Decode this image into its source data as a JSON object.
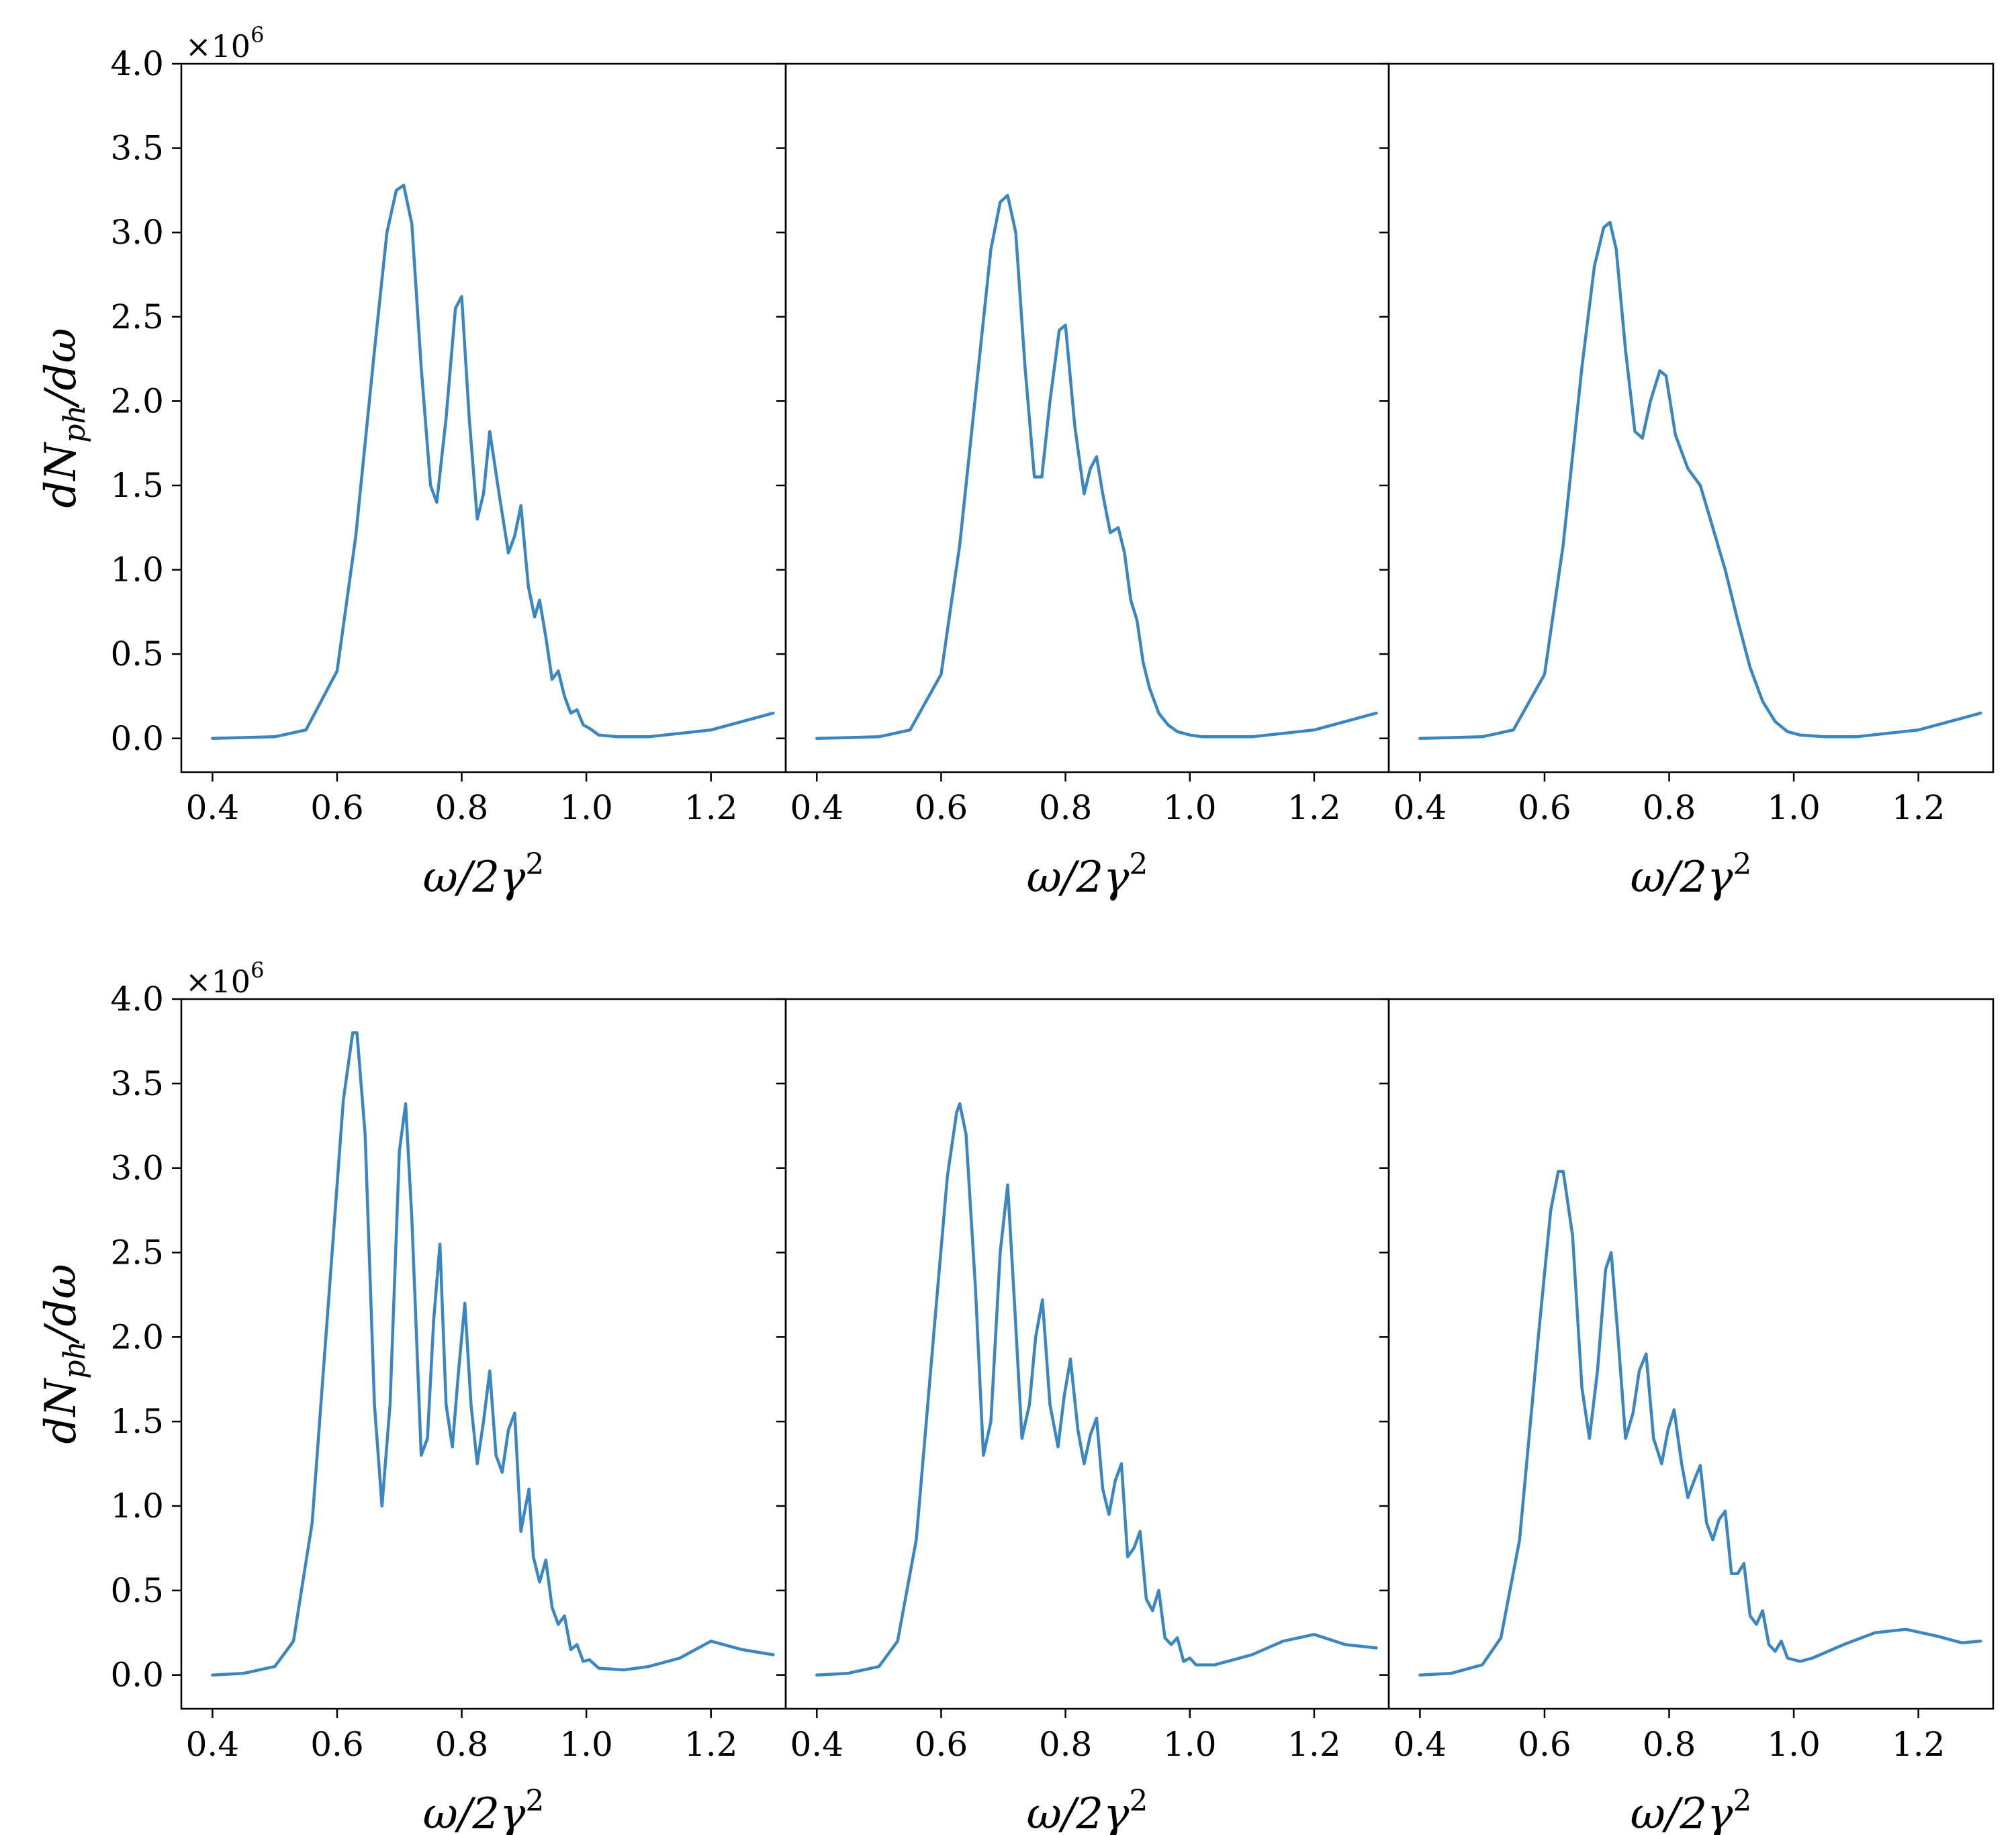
{
  "style": {
    "line_color": "#3a86c0"
  },
  "labels": {
    "xlabel_lhs": "ω/2γ",
    "xlabel_sup": "2",
    "ylabel_main": "dN",
    "ylabel_sub": "ph",
    "ylabel_tail": "/dω",
    "offset_base": "×10",
    "offset_exp": "6"
  },
  "chart_data": [
    {
      "type": "line",
      "row": 1,
      "col": 1,
      "xlim": [
        0.35,
        1.32
      ],
      "ylim": [
        -0.2,
        4.0
      ],
      "y_scale_factor": 1000000,
      "xticks": [
        "0.4",
        "0.6",
        "0.8",
        "1.0",
        "1.2"
      ],
      "yticks": [
        "0.0",
        "0.5",
        "1.0",
        "1.5",
        "2.0",
        "2.5",
        "3.0",
        "3.5",
        "4.0"
      ],
      "xlabel": "ω/2γ²",
      "ylabel": "dN_ph/dω",
      "offset_text": "×10^6",
      "x": [
        0.4,
        0.5,
        0.55,
        0.6,
        0.63,
        0.66,
        0.68,
        0.695,
        0.707,
        0.72,
        0.735,
        0.75,
        0.76,
        0.775,
        0.79,
        0.8,
        0.812,
        0.825,
        0.835,
        0.845,
        0.86,
        0.875,
        0.885,
        0.895,
        0.907,
        0.917,
        0.925,
        0.935,
        0.945,
        0.955,
        0.965,
        0.975,
        0.985,
        0.995,
        1.005,
        1.02,
        1.05,
        1.1,
        1.2,
        1.3
      ],
      "y": [
        0.0,
        0.01,
        0.05,
        0.4,
        1.2,
        2.3,
        3.0,
        3.25,
        3.28,
        3.05,
        2.2,
        1.5,
        1.4,
        1.9,
        2.55,
        2.62,
        1.9,
        1.3,
        1.45,
        1.82,
        1.45,
        1.1,
        1.2,
        1.38,
        0.9,
        0.72,
        0.82,
        0.6,
        0.35,
        0.4,
        0.25,
        0.15,
        0.17,
        0.08,
        0.06,
        0.02,
        0.01,
        0.01,
        0.05,
        0.15
      ]
    },
    {
      "type": "line",
      "row": 1,
      "col": 2,
      "xlim": [
        0.35,
        1.32
      ],
      "ylim": [
        -0.2,
        4.0
      ],
      "y_scale_factor": 1000000,
      "xticks": [
        "0.4",
        "0.6",
        "0.8",
        "1.0",
        "1.2"
      ],
      "xlabel": "ω/2γ²",
      "x": [
        0.4,
        0.5,
        0.55,
        0.6,
        0.63,
        0.66,
        0.68,
        0.695,
        0.707,
        0.72,
        0.735,
        0.75,
        0.762,
        0.775,
        0.79,
        0.8,
        0.815,
        0.83,
        0.84,
        0.85,
        0.86,
        0.872,
        0.885,
        0.895,
        0.905,
        0.915,
        0.925,
        0.935,
        0.95,
        0.965,
        0.98,
        1.0,
        1.02,
        1.06,
        1.1,
        1.2,
        1.3
      ],
      "y": [
        0.0,
        0.01,
        0.05,
        0.38,
        1.15,
        2.2,
        2.9,
        3.18,
        3.22,
        3.0,
        2.2,
        1.55,
        1.55,
        2.0,
        2.42,
        2.45,
        1.85,
        1.45,
        1.6,
        1.67,
        1.45,
        1.22,
        1.25,
        1.1,
        0.82,
        0.7,
        0.45,
        0.3,
        0.15,
        0.08,
        0.04,
        0.02,
        0.01,
        0.01,
        0.01,
        0.05,
        0.15
      ]
    },
    {
      "type": "line",
      "row": 1,
      "col": 3,
      "xlim": [
        0.35,
        1.32
      ],
      "ylim": [
        -0.2,
        4.0
      ],
      "y_scale_factor": 1000000,
      "xticks": [
        "0.4",
        "0.6",
        "0.8",
        "1.0",
        "1.2"
      ],
      "xlabel": "ω/2γ²",
      "x": [
        0.4,
        0.5,
        0.55,
        0.6,
        0.63,
        0.66,
        0.68,
        0.695,
        0.705,
        0.715,
        0.73,
        0.745,
        0.757,
        0.77,
        0.785,
        0.795,
        0.81,
        0.83,
        0.85,
        0.87,
        0.89,
        0.91,
        0.93,
        0.95,
        0.97,
        0.99,
        1.01,
        1.05,
        1.1,
        1.2,
        1.3
      ],
      "y": [
        0.0,
        0.01,
        0.05,
        0.38,
        1.15,
        2.2,
        2.8,
        3.03,
        3.06,
        2.9,
        2.3,
        1.82,
        1.78,
        2.0,
        2.18,
        2.15,
        1.8,
        1.6,
        1.5,
        1.25,
        1.0,
        0.7,
        0.42,
        0.22,
        0.1,
        0.04,
        0.02,
        0.01,
        0.01,
        0.05,
        0.15
      ]
    },
    {
      "type": "line",
      "row": 2,
      "col": 1,
      "xlim": [
        0.35,
        1.32
      ],
      "ylim": [
        -0.2,
        4.0
      ],
      "y_scale_factor": 1000000,
      "xticks": [
        "0.4",
        "0.6",
        "0.8",
        "1.0",
        "1.2"
      ],
      "yticks": [
        "0.0",
        "0.5",
        "1.0",
        "1.5",
        "2.0",
        "2.5",
        "3.0",
        "3.5",
        "4.0"
      ],
      "xlabel": "ω/2γ²",
      "ylabel": "dN_ph/dω",
      "offset_text": "×10^6",
      "x": [
        0.4,
        0.45,
        0.5,
        0.53,
        0.56,
        0.59,
        0.61,
        0.625,
        0.632,
        0.645,
        0.66,
        0.672,
        0.685,
        0.7,
        0.71,
        0.72,
        0.735,
        0.745,
        0.755,
        0.765,
        0.775,
        0.785,
        0.795,
        0.805,
        0.815,
        0.825,
        0.835,
        0.845,
        0.855,
        0.865,
        0.875,
        0.885,
        0.895,
        0.9,
        0.908,
        0.915,
        0.925,
        0.935,
        0.945,
        0.955,
        0.965,
        0.975,
        0.985,
        0.995,
        1.005,
        1.02,
        1.06,
        1.1,
        1.15,
        1.2,
        1.25,
        1.3
      ],
      "y": [
        0.0,
        0.01,
        0.05,
        0.2,
        0.9,
        2.4,
        3.4,
        3.8,
        3.8,
        3.2,
        1.6,
        1.0,
        1.6,
        3.1,
        3.38,
        2.7,
        1.3,
        1.4,
        2.1,
        2.55,
        1.6,
        1.35,
        1.8,
        2.2,
        1.6,
        1.25,
        1.5,
        1.8,
        1.3,
        1.2,
        1.45,
        1.55,
        0.85,
        0.95,
        1.1,
        0.7,
        0.55,
        0.68,
        0.4,
        0.3,
        0.35,
        0.15,
        0.18,
        0.08,
        0.09,
        0.04,
        0.03,
        0.05,
        0.1,
        0.2,
        0.15,
        0.12
      ]
    },
    {
      "type": "line",
      "row": 2,
      "col": 2,
      "xlim": [
        0.35,
        1.32
      ],
      "ylim": [
        -0.2,
        4.0
      ],
      "y_scale_factor": 1000000,
      "xticks": [
        "0.4",
        "0.6",
        "0.8",
        "1.0",
        "1.2"
      ],
      "xlabel": "ω/2γ²",
      "x": [
        0.4,
        0.45,
        0.5,
        0.53,
        0.56,
        0.59,
        0.61,
        0.625,
        0.63,
        0.64,
        0.655,
        0.668,
        0.68,
        0.695,
        0.707,
        0.718,
        0.73,
        0.742,
        0.752,
        0.763,
        0.775,
        0.788,
        0.798,
        0.808,
        0.82,
        0.83,
        0.84,
        0.85,
        0.86,
        0.87,
        0.88,
        0.89,
        0.9,
        0.91,
        0.92,
        0.93,
        0.94,
        0.95,
        0.96,
        0.97,
        0.98,
        0.99,
        1.0,
        1.01,
        1.04,
        1.1,
        1.15,
        1.2,
        1.25,
        1.3
      ],
      "y": [
        0.0,
        0.01,
        0.05,
        0.2,
        0.8,
        2.1,
        2.95,
        3.33,
        3.38,
        3.2,
        2.3,
        1.3,
        1.5,
        2.5,
        2.9,
        2.2,
        1.4,
        1.6,
        2.0,
        2.22,
        1.6,
        1.35,
        1.65,
        1.87,
        1.45,
        1.25,
        1.42,
        1.52,
        1.1,
        0.95,
        1.15,
        1.25,
        0.7,
        0.75,
        0.85,
        0.45,
        0.38,
        0.5,
        0.22,
        0.18,
        0.22,
        0.08,
        0.1,
        0.06,
        0.06,
        0.12,
        0.2,
        0.24,
        0.18,
        0.16
      ]
    },
    {
      "type": "line",
      "row": 2,
      "col": 3,
      "xlim": [
        0.35,
        1.32
      ],
      "ylim": [
        -0.2,
        4.0
      ],
      "y_scale_factor": 1000000,
      "xticks": [
        "0.4",
        "0.6",
        "0.8",
        "1.0",
        "1.2"
      ],
      "xlabel": "ω/2γ²",
      "x": [
        0.4,
        0.45,
        0.5,
        0.53,
        0.56,
        0.59,
        0.61,
        0.622,
        0.63,
        0.645,
        0.66,
        0.672,
        0.685,
        0.698,
        0.707,
        0.718,
        0.73,
        0.742,
        0.752,
        0.763,
        0.775,
        0.788,
        0.798,
        0.808,
        0.82,
        0.83,
        0.84,
        0.85,
        0.86,
        0.87,
        0.88,
        0.89,
        0.9,
        0.91,
        0.92,
        0.93,
        0.94,
        0.95,
        0.96,
        0.97,
        0.98,
        0.99,
        1.0,
        1.01,
        1.03,
        1.08,
        1.13,
        1.18,
        1.23,
        1.27,
        1.3
      ],
      "y": [
        0.0,
        0.01,
        0.06,
        0.22,
        0.8,
        2.0,
        2.75,
        2.98,
        2.98,
        2.6,
        1.7,
        1.4,
        1.8,
        2.4,
        2.5,
        2.0,
        1.4,
        1.55,
        1.8,
        1.9,
        1.4,
        1.25,
        1.45,
        1.57,
        1.25,
        1.05,
        1.15,
        1.24,
        0.9,
        0.8,
        0.92,
        0.97,
        0.6,
        0.6,
        0.66,
        0.35,
        0.3,
        0.38,
        0.18,
        0.14,
        0.2,
        0.1,
        0.09,
        0.08,
        0.1,
        0.18,
        0.25,
        0.27,
        0.23,
        0.19,
        0.2
      ]
    }
  ]
}
